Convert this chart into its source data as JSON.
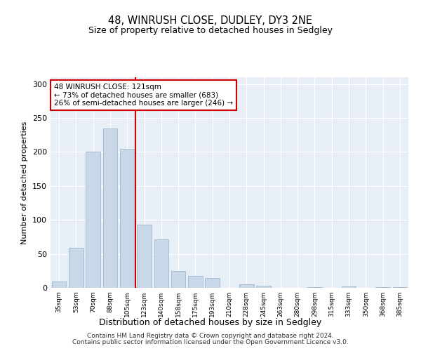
{
  "title": "48, WINRUSH CLOSE, DUDLEY, DY3 2NE",
  "subtitle": "Size of property relative to detached houses in Sedgley",
  "xlabel": "Distribution of detached houses by size in Sedgley",
  "ylabel": "Number of detached properties",
  "categories": [
    "35sqm",
    "53sqm",
    "70sqm",
    "88sqm",
    "105sqm",
    "123sqm",
    "140sqm",
    "158sqm",
    "175sqm",
    "193sqm",
    "210sqm",
    "228sqm",
    "245sqm",
    "263sqm",
    "280sqm",
    "298sqm",
    "315sqm",
    "333sqm",
    "350sqm",
    "368sqm",
    "385sqm"
  ],
  "values": [
    9,
    59,
    200,
    235,
    205,
    93,
    71,
    25,
    18,
    14,
    0,
    5,
    3,
    0,
    0,
    1,
    0,
    2,
    0,
    1,
    1
  ],
  "bar_color": "#c8d8e8",
  "bar_edge_color": "#a0b8d0",
  "redline_index": 5,
  "annotation_line1": "48 WINRUSH CLOSE: 121sqm",
  "annotation_line2": "← 73% of detached houses are smaller (683)",
  "annotation_line3": "26% of semi-detached houses are larger (246) →",
  "annotation_box_color": "#ffffff",
  "annotation_box_edge_color": "#cc0000",
  "redline_color": "#cc0000",
  "ylim": [
    0,
    310
  ],
  "yticks": [
    0,
    50,
    100,
    150,
    200,
    250,
    300
  ],
  "background_color": "#e8eef5",
  "footer1": "Contains HM Land Registry data © Crown copyright and database right 2024.",
  "footer2": "Contains public sector information licensed under the Open Government Licence v3.0."
}
